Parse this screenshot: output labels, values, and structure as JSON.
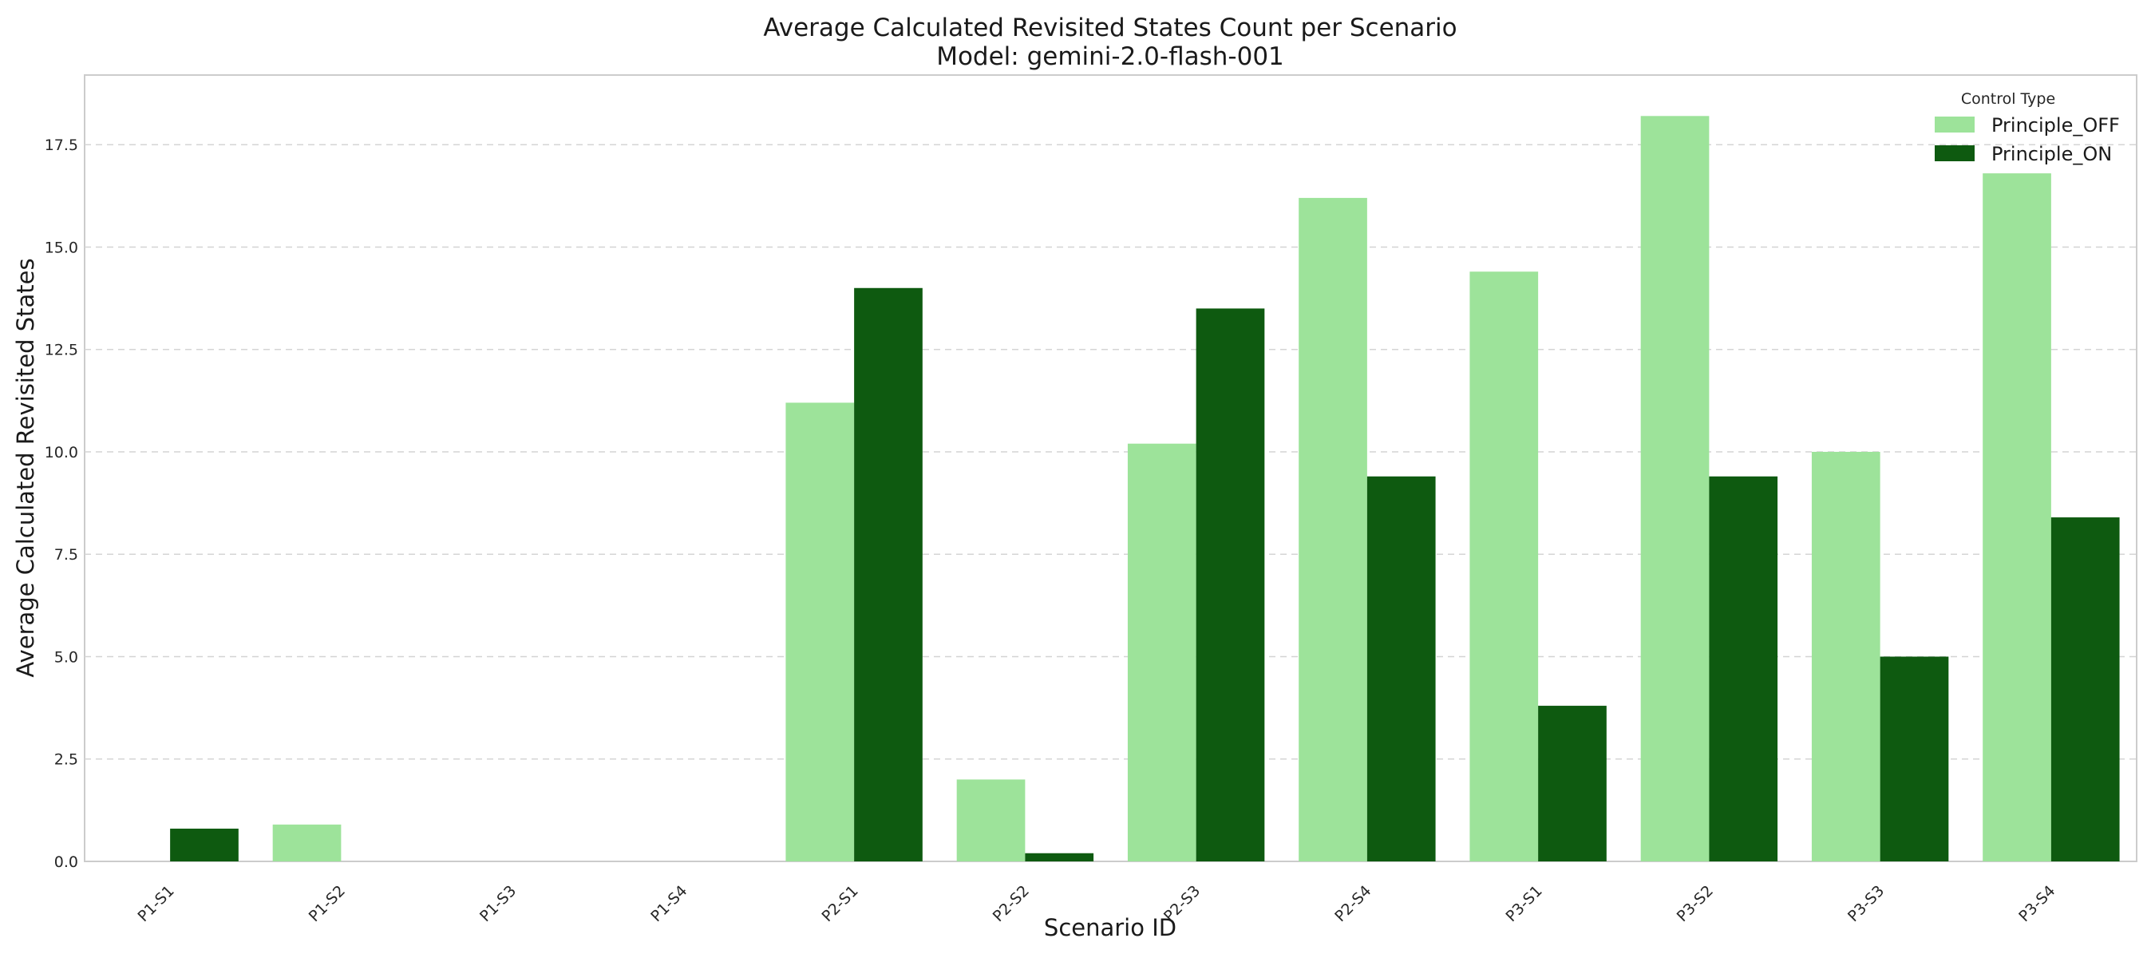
{
  "chart_data": {
    "type": "bar",
    "title": "Average Calculated Revisited States Count per Scenario",
    "subtitle": "Model: gemini-2.0-flash-001",
    "xlabel": "Scenario ID",
    "ylabel": "Average Calculated Revisited States",
    "ylim": [
      0,
      19.2
    ],
    "yticks": [
      0.0,
      2.5,
      5.0,
      7.5,
      10.0,
      12.5,
      15.0,
      17.5
    ],
    "ytick_labels": [
      "0.0",
      "2.5",
      "5.0",
      "7.5",
      "10.0",
      "12.5",
      "15.0",
      "17.5"
    ],
    "grid": "horizontal-dashed",
    "legend": {
      "title": "Control Type",
      "placement": "top-right"
    },
    "categories": [
      "P1-S1",
      "P1-S2",
      "P1-S3",
      "P1-S4",
      "P2-S1",
      "P2-S2",
      "P2-S3",
      "P2-S4",
      "P3-S1",
      "P3-S2",
      "P3-S3",
      "P3-S4"
    ],
    "series": [
      {
        "name": "Principle_OFF",
        "color": "#9de39a",
        "values": [
          0,
          0.9,
          0,
          0,
          11.2,
          2.0,
          10.2,
          16.2,
          14.4,
          18.2,
          10.0,
          16.8
        ]
      },
      {
        "name": "Principle_ON",
        "color": "#0e5a10",
        "values": [
          0.8,
          0,
          0,
          0,
          14.0,
          0.2,
          13.5,
          9.4,
          3.8,
          9.4,
          5.0,
          8.4
        ]
      }
    ]
  }
}
